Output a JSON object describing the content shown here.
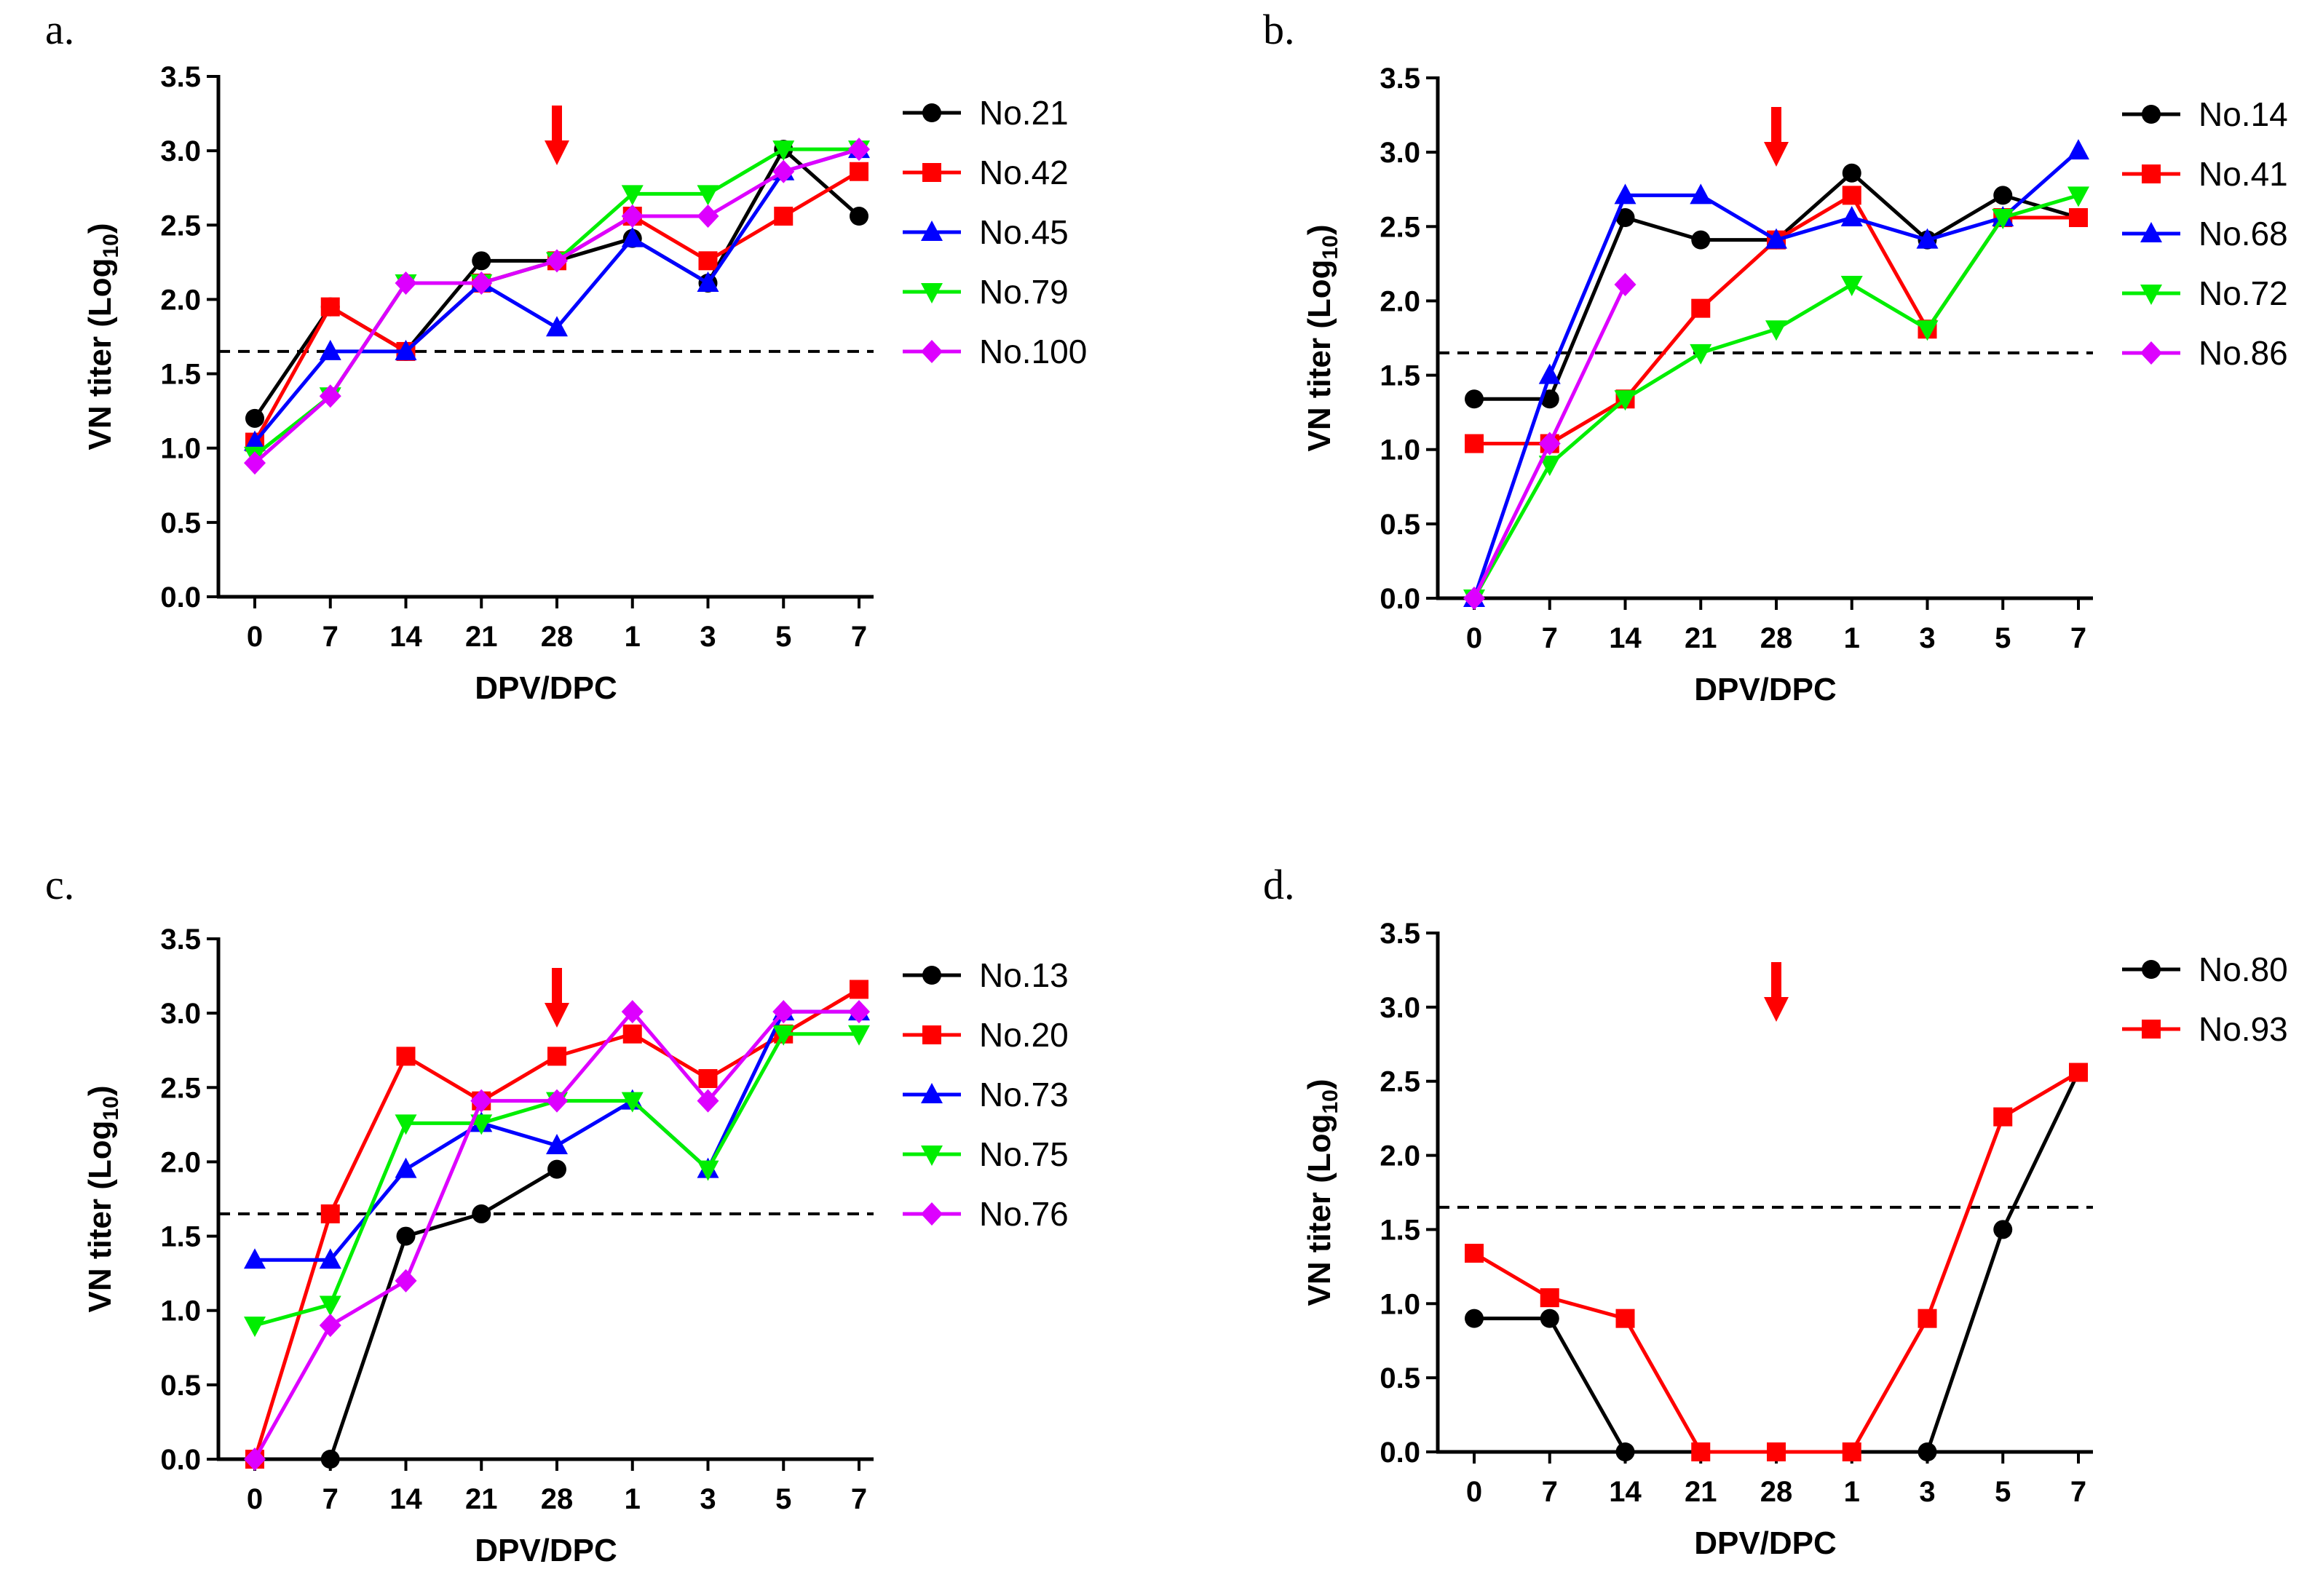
{
  "chart_data": [
    {
      "type": "line",
      "panel_label": "a.",
      "categories": [
        "0",
        "7",
        "14",
        "21",
        "28",
        "1",
        "3",
        "5",
        "7"
      ],
      "xlabel": "DPV/DPC",
      "ylabel_main": "VN titer (Log",
      "ylabel_sub": "10",
      "ylabel_close": ")",
      "ylim": [
        0,
        3.5
      ],
      "yticks": [
        "0.0",
        "0.5",
        "1.0",
        "1.5",
        "2.0",
        "2.5",
        "3.0",
        "3.5"
      ],
      "threshold": 1.65,
      "arrow_at_category": "28",
      "series": [
        {
          "name": "No.21",
          "color": "#000000",
          "marker": "circle",
          "values": [
            1.2,
            1.95,
            1.65,
            2.26,
            2.26,
            2.41,
            2.11,
            3.01,
            2.56
          ]
        },
        {
          "name": "No.42",
          "color": "#ff0000",
          "marker": "square",
          "values": [
            1.04,
            1.95,
            1.65,
            2.11,
            2.26,
            2.56,
            2.26,
            2.56,
            2.86
          ]
        },
        {
          "name": "No.45",
          "color": "#0000ff",
          "marker": "triangle-up",
          "values": [
            1.04,
            1.65,
            1.65,
            2.11,
            1.81,
            2.41,
            2.11,
            2.86,
            3.01
          ]
        },
        {
          "name": "No.79",
          "color": "#00ee00",
          "marker": "triangle-down",
          "values": [
            0.95,
            1.35,
            2.11,
            2.11,
            2.26,
            2.71,
            2.71,
            3.01,
            3.01
          ]
        },
        {
          "name": "No.100",
          "color": "#dd00ff",
          "marker": "diamond",
          "values": [
            0.9,
            1.35,
            2.11,
            2.11,
            2.26,
            2.56,
            2.56,
            2.86,
            3.01
          ]
        }
      ]
    },
    {
      "type": "line",
      "panel_label": "b.",
      "categories": [
        "0",
        "7",
        "14",
        "21",
        "28",
        "1",
        "3",
        "5",
        "7"
      ],
      "xlabel": "DPV/DPC",
      "ylabel_main": "VN titer (Log",
      "ylabel_sub": "10",
      "ylabel_close": ")",
      "ylim": [
        0,
        3.5
      ],
      "yticks": [
        "0.0",
        "0.5",
        "1.0",
        "1.5",
        "2.0",
        "2.5",
        "3.0",
        "3.5"
      ],
      "threshold": 1.65,
      "arrow_at_category": "28",
      "series": [
        {
          "name": "No.14",
          "color": "#000000",
          "marker": "circle",
          "values": [
            1.34,
            1.34,
            2.56,
            2.41,
            2.41,
            2.86,
            2.41,
            2.71,
            2.56
          ]
        },
        {
          "name": "No.41",
          "color": "#ff0000",
          "marker": "square",
          "values": [
            1.04,
            1.04,
            1.34,
            1.95,
            2.41,
            2.71,
            1.81,
            2.56,
            2.56
          ]
        },
        {
          "name": "No.68",
          "color": "#0000ff",
          "marker": "triangle-up",
          "values": [
            0.0,
            1.5,
            2.71,
            2.71,
            2.41,
            2.56,
            2.41,
            2.56,
            3.01
          ]
        },
        {
          "name": "No.72",
          "color": "#00ee00",
          "marker": "triangle-down",
          "values": [
            0.0,
            0.9,
            1.34,
            1.65,
            1.81,
            2.11,
            1.81,
            2.56,
            2.71
          ]
        },
        {
          "name": "No.86",
          "color": "#dd00ff",
          "marker": "diamond",
          "values": [
            0.0,
            1.04,
            2.11,
            null,
            null,
            null,
            null,
            null,
            null
          ]
        }
      ]
    },
    {
      "type": "line",
      "panel_label": "c.",
      "categories": [
        "0",
        "7",
        "14",
        "21",
        "28",
        "1",
        "3",
        "5",
        "7"
      ],
      "xlabel": "DPV/DPC",
      "ylabel_main": "VN titer (Log",
      "ylabel_sub": "10",
      "ylabel_close": ")",
      "ylim": [
        0,
        3.5
      ],
      "yticks": [
        "0.0",
        "0.5",
        "1.0",
        "1.5",
        "2.0",
        "2.5",
        "3.0",
        "3.5"
      ],
      "threshold": 1.65,
      "arrow_at_category": "28",
      "series": [
        {
          "name": "No.13",
          "color": "#000000",
          "marker": "circle",
          "values": [
            0.0,
            0.0,
            1.5,
            1.65,
            1.95,
            null,
            null,
            null,
            null
          ]
        },
        {
          "name": "No.20",
          "color": "#ff0000",
          "marker": "square",
          "values": [
            0.0,
            1.65,
            2.71,
            2.41,
            2.71,
            2.86,
            2.56,
            2.86,
            3.16
          ]
        },
        {
          "name": "No.73",
          "color": "#0000ff",
          "marker": "triangle-up",
          "values": [
            1.34,
            1.34,
            1.95,
            2.26,
            2.11,
            2.41,
            1.95,
            3.01,
            3.01
          ]
        },
        {
          "name": "No.75",
          "color": "#00ee00",
          "marker": "triangle-down",
          "values": [
            0.9,
            1.04,
            2.26,
            2.26,
            2.41,
            2.41,
            1.95,
            2.86,
            2.86
          ]
        },
        {
          "name": "No.76",
          "color": "#dd00ff",
          "marker": "diamond",
          "values": [
            0.0,
            0.9,
            1.2,
            2.41,
            2.41,
            3.01,
            2.41,
            3.01,
            3.01
          ]
        }
      ]
    },
    {
      "type": "line",
      "panel_label": "d.",
      "categories": [
        "0",
        "7",
        "14",
        "21",
        "28",
        "1",
        "3",
        "5",
        "7"
      ],
      "xlabel": "DPV/DPC",
      "ylabel_main": "VN titer (Log",
      "ylabel_sub": "10",
      "ylabel_close": ")",
      "ylim": [
        0,
        3.5
      ],
      "yticks": [
        "0.0",
        "0.5",
        "1.0",
        "1.5",
        "2.0",
        "2.5",
        "3.0",
        "3.5"
      ],
      "threshold": 1.65,
      "arrow_at_category": "28",
      "series": [
        {
          "name": "No.80",
          "color": "#000000",
          "marker": "circle",
          "values": [
            0.9,
            0.9,
            0.0,
            null,
            null,
            null,
            0.0,
            1.5,
            2.56
          ]
        },
        {
          "name": "No.93",
          "color": "#ff0000",
          "marker": "square",
          "values": [
            1.34,
            1.04,
            0.9,
            0.0,
            0.0,
            0.0,
            0.9,
            2.26,
            2.56
          ]
        }
      ]
    }
  ]
}
